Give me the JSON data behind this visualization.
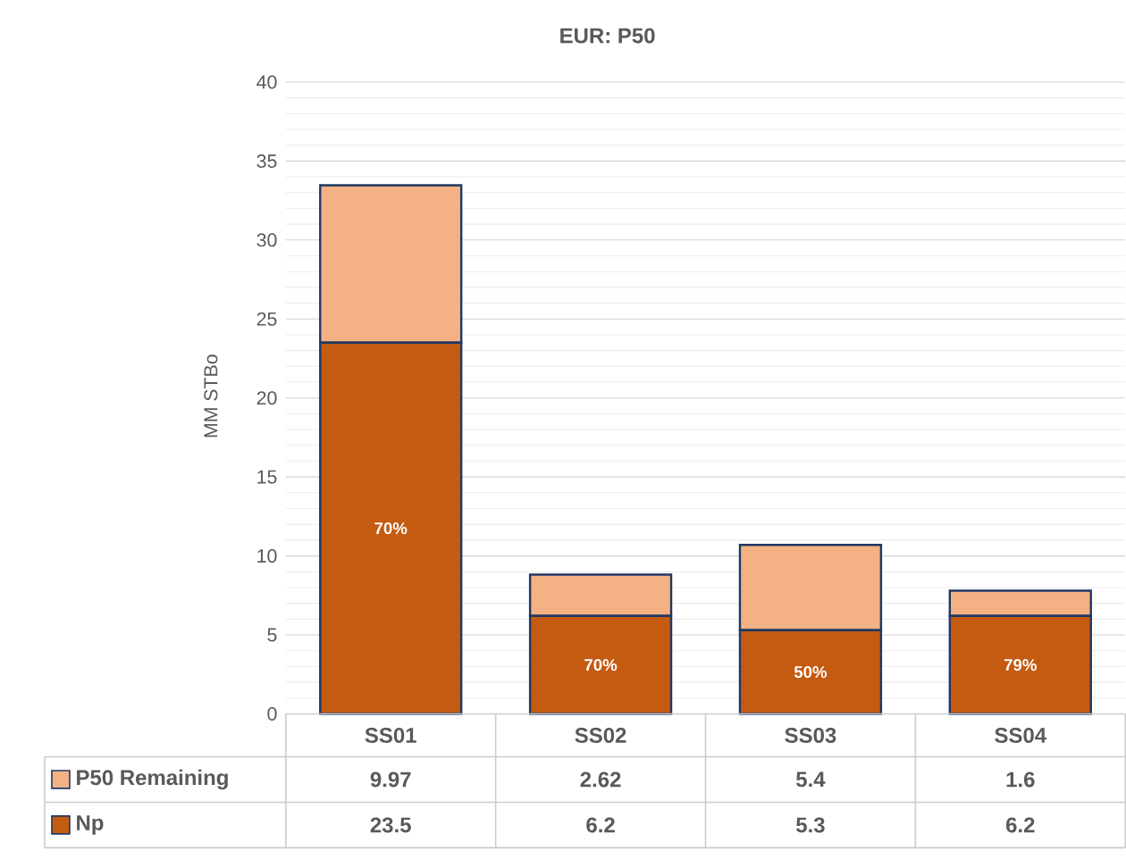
{
  "chart_data": {
    "type": "bar",
    "title": "EUR: P50",
    "ylabel": "MM STBo",
    "stacked": true,
    "data_labels": true,
    "grid": true,
    "legend": "bottom",
    "categories": [
      "SS01",
      "SS02",
      "SS03",
      "SS04"
    ],
    "series": [
      {
        "name": "Np",
        "color": "#c55a11",
        "values": [
          23.5,
          6.2,
          5.3,
          6.2
        ]
      },
      {
        "name": "P50 Remaining",
        "color": "#f4b183",
        "values": [
          9.97,
          2.62,
          5.4,
          1.6
        ]
      }
    ],
    "annotations": [
      "70%",
      "70%",
      "50%",
      "79%"
    ],
    "ylim": [
      0,
      40
    ],
    "yticks": [
      0,
      5,
      10,
      15,
      20,
      25,
      30,
      35,
      40
    ]
  }
}
